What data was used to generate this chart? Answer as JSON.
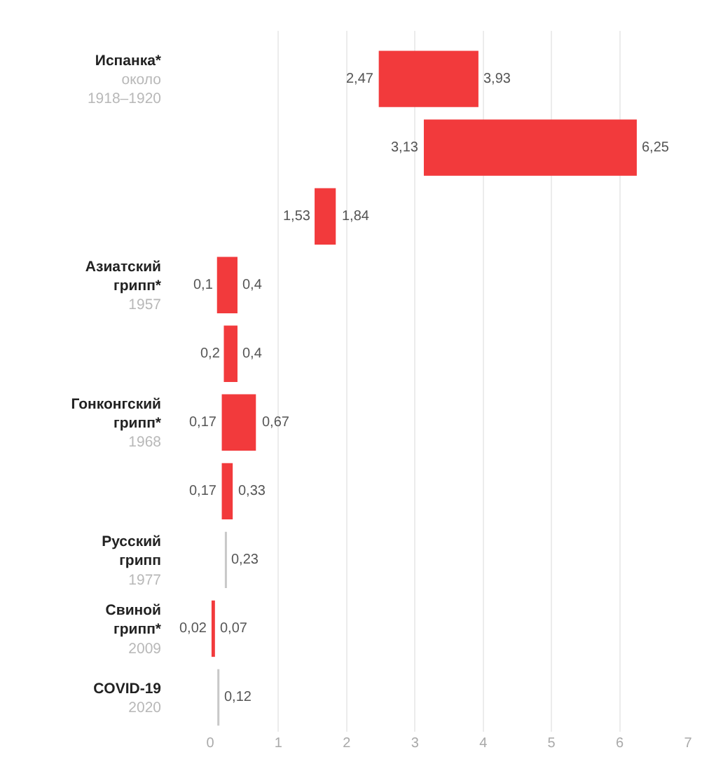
{
  "chart_data": {
    "type": "bar",
    "orientation": "horizontal",
    "categories": [
      "Испанка*\nоколо 1918–1920",
      null,
      null,
      "Азиатский грипп*\n1957",
      null,
      "Гонконгский грипп*\n1968",
      null,
      "Русский грипп\n1977",
      "Свиной грипп*\n2009",
      "COVID-19\n2020"
    ],
    "series": [
      {
        "color": "#f23a3c",
        "base": [
          2.47,
          3.13,
          1.53,
          0.1,
          0.2,
          0.17,
          0.17,
          null,
          0.02,
          null
        ],
        "values": [
          1.46,
          3.12,
          0.31,
          0.3,
          0.2,
          0.5,
          0.16,
          null,
          0.05,
          null
        ]
      },
      {
        "color": "#c8c8c8",
        "base": [
          null,
          null,
          null,
          null,
          null,
          null,
          null,
          0.23,
          null,
          0.12
        ],
        "values": [
          null,
          null,
          null,
          null,
          null,
          null,
          null,
          0,
          null,
          0
        ]
      }
    ],
    "annotations": [
      {
        "text": "2,47",
        "x": 2.47
      },
      {
        "text": "3,93",
        "x": 3.93
      },
      {
        "text": "3,13",
        "x": 3.13
      },
      {
        "text": "6,25",
        "x": 6.25
      },
      {
        "text": "1,53",
        "x": 1.53
      },
      {
        "text": "1,84",
        "x": 1.84
      },
      {
        "text": "0,1",
        "x": 0.1
      },
      {
        "text": "0,4",
        "x": 0.4
      },
      {
        "text": "0,2",
        "x": 0.2
      },
      {
        "text": "0,4",
        "x": 0.4
      },
      {
        "text": "0,17",
        "x": 0.17
      },
      {
        "text": "0,67",
        "x": 0.67
      },
      {
        "text": "0,17",
        "x": 0.17
      },
      {
        "text": "0,33",
        "x": 0.33
      },
      {
        "text": "0,23",
        "x": 0.23
      },
      {
        "text": "0,02",
        "x": 0.02
      },
      {
        "text": "0,07",
        "x": 0.07
      },
      {
        "text": "0,12",
        "x": 0.12
      }
    ],
    "xlim": [
      0,
      7
    ],
    "xticks": [
      0,
      1,
      2,
      3,
      4,
      5,
      6,
      7
    ],
    "grid": "x"
  }
}
